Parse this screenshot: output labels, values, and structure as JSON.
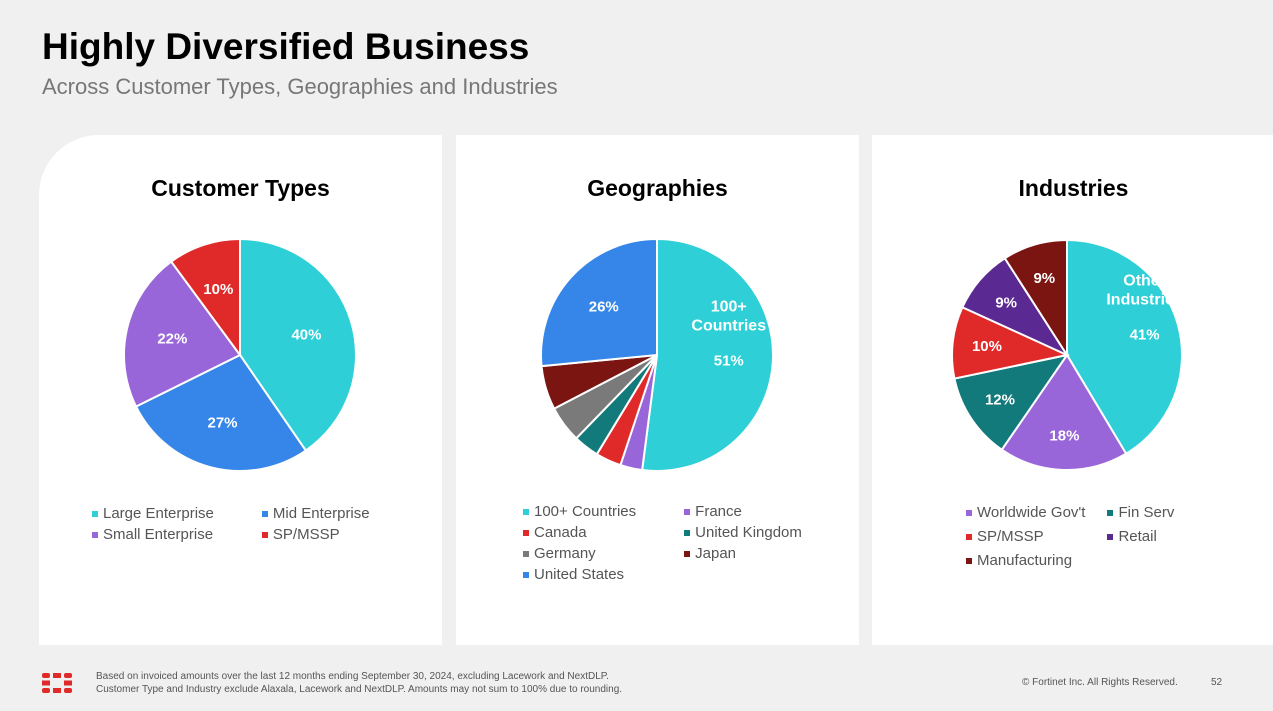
{
  "header": {
    "title": "Highly Diversified Business",
    "subtitle": "Across Customer Types, Geographies and Industries"
  },
  "colors": {
    "cyan": "#2ecfd6",
    "blue": "#3586e8",
    "purple": "#9966d9",
    "red": "#e02a2a",
    "teal": "#137a7c",
    "gray": "#7a7a7a",
    "darkred": "#7a1511",
    "violet": "#5a2a92"
  },
  "chart_data": [
    {
      "type": "pie",
      "title": "Customer Types",
      "slices": [
        {
          "label": "Large Enterprise",
          "value": 40,
          "display": "40%",
          "color": "#2ecfd6"
        },
        {
          "label": "Mid Enterprise",
          "value": 27,
          "display": "27%",
          "color": "#3586e8"
        },
        {
          "label": "Small Enterprise",
          "value": 22,
          "display": "22%",
          "color": "#9966d9"
        },
        {
          "label": "SP/MSSP",
          "value": 10,
          "display": "10%",
          "color": "#e02a2a"
        }
      ],
      "legend": [
        "Large Enterprise",
        "Mid Enterprise",
        "Small Enterprise",
        "SP/MSSP"
      ],
      "legend_colors": [
        "#2ecfd6",
        "#3586e8",
        "#9966d9",
        "#e02a2a"
      ]
    },
    {
      "type": "pie",
      "title": "Geographies",
      "slices": [
        {
          "label": "100+ Countries",
          "value": 51,
          "display": "51%",
          "inner_label": "100+ Countries",
          "color": "#2ecfd6"
        },
        {
          "label": "France",
          "value": 3,
          "display": "",
          "color": "#9966d9"
        },
        {
          "label": "Canada",
          "value": 3.5,
          "display": "",
          "color": "#e02a2a"
        },
        {
          "label": "United Kingdom",
          "value": 3.5,
          "display": "",
          "color": "#137a7c"
        },
        {
          "label": "Germany",
          "value": 5,
          "display": "",
          "color": "#7a7a7a"
        },
        {
          "label": "Japan",
          "value": 6,
          "display": "",
          "color": "#7a1511"
        },
        {
          "label": "United States",
          "value": 26,
          "display": "26%",
          "color": "#3586e8"
        }
      ],
      "legend": [
        "100+ Countries",
        "France",
        "Canada",
        "United Kingdom",
        "Germany",
        "Japan",
        "United States"
      ],
      "legend_colors": [
        "#2ecfd6",
        "#9966d9",
        "#e02a2a",
        "#137a7c",
        "#7a7a7a",
        "#7a1511",
        "#3586e8"
      ]
    },
    {
      "type": "pie",
      "title": "Industries",
      "slices": [
        {
          "label": "Other Industries",
          "value": 41,
          "display": "41%",
          "inner_label": "Other Industries",
          "color": "#2ecfd6"
        },
        {
          "label": "Worldwide Gov't",
          "value": 18,
          "display": "18%",
          "color": "#9966d9"
        },
        {
          "label": "Fin Serv",
          "value": 12,
          "display": "12%",
          "color": "#137a7c"
        },
        {
          "label": "SP/MSSP",
          "value": 10,
          "display": "10%",
          "color": "#e02a2a"
        },
        {
          "label": "Retail",
          "value": 9,
          "display": "9%",
          "color": "#5a2a92"
        },
        {
          "label": "Manufacturing",
          "value": 9,
          "display": "9%",
          "color": "#7a1511"
        }
      ],
      "legend": [
        "Worldwide Gov't",
        "Fin Serv",
        "SP/MSSP",
        "Retail",
        "Manufacturing"
      ],
      "legend_colors": [
        "#9966d9",
        "#137a7c",
        "#e02a2a",
        "#5a2a92",
        "#7a1511"
      ]
    }
  ],
  "footer": {
    "note_line1": "Based on invoiced amounts over the last  12  months ending September 30, 2024, excluding Lacework and NextDLP.",
    "note_line2": "Customer Type and Industry exclude Alaxala, Lacework and NextDLP.  Amounts may not sum to 100% due to rounding.",
    "copyright": "© Fortinet Inc. All Rights Reserved.",
    "page_number": "52"
  }
}
